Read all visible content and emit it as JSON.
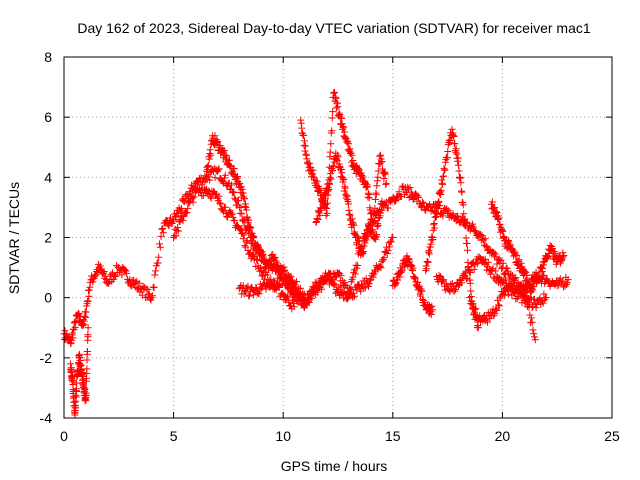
{
  "chart_data": {
    "type": "scatter",
    "title": "Day 162 of 2023, Sidereal Day-to-day VTEC variation (SDTVAR) for receiver mac1",
    "xlabel": "GPS time / hours",
    "ylabel": "SDTVAR / TECUs",
    "xlim": [
      0,
      25
    ],
    "ylim": [
      -4,
      8
    ],
    "xticks": [
      0,
      5,
      10,
      15,
      20,
      25
    ],
    "yticks": [
      -4,
      -2,
      0,
      2,
      4,
      6,
      8
    ],
    "xtick_labels": [
      "0",
      "5",
      "10",
      "15",
      "20",
      "25"
    ],
    "ytick_labels": [
      "-4",
      "-2",
      "0",
      "2",
      "4",
      "6",
      "8"
    ],
    "grid": true,
    "legend": "none",
    "marker": "+",
    "series_color": "#ff0000",
    "series": [
      {
        "name": "track-1",
        "x": [
          0.0,
          0.3,
          0.6,
          0.9,
          1.2,
          1.6,
          2.0,
          2.5,
          3.0,
          3.5,
          4.0,
          4.5,
          5.0,
          5.5,
          6.0,
          6.5,
          7.0,
          7.5,
          8.0,
          8.5,
          9.0,
          9.5,
          10.0,
          10.5,
          11.0,
          11.5,
          12.0,
          12.5,
          13.0,
          13.5,
          14.0,
          14.5,
          15.0,
          15.5,
          16.0,
          16.5,
          17.0,
          17.5,
          18.0,
          18.5,
          19.0,
          19.5,
          20.0,
          20.5,
          21.0,
          21.5,
          22.0,
          22.5,
          23.0
        ],
        "y": [
          -1.2,
          -1.5,
          -0.6,
          -0.9,
          0.5,
          1.0,
          0.5,
          1.0,
          0.6,
          0.3,
          0.0,
          2.3,
          2.6,
          3.2,
          3.8,
          4.0,
          4.2,
          3.8,
          3.0,
          2.0,
          1.4,
          0.9,
          0.9,
          0.3,
          -0.2,
          0.4,
          0.7,
          0.8,
          0.1,
          1.5,
          2.6,
          2.9,
          3.3,
          3.6,
          3.4,
          2.9,
          3.0,
          2.8,
          2.6,
          2.4,
          2.1,
          1.5,
          1.0,
          0.6,
          0.2,
          0.7,
          0.6,
          0.4,
          0.6
        ]
      },
      {
        "name": "track-2",
        "x": [
          6.5,
          6.8,
          7.1,
          7.4,
          7.7,
          8.0,
          8.3,
          8.6,
          8.9,
          9.2,
          9.5,
          9.8,
          10.1,
          10.4,
          10.7,
          11.0
        ],
        "y": [
          4.2,
          5.3,
          5.0,
          4.6,
          4.2,
          3.8,
          3.0,
          2.0,
          1.5,
          1.0,
          1.3,
          1.0,
          0.6,
          0.2,
          0.0,
          -0.2
        ]
      },
      {
        "name": "track-3",
        "x": [
          5.0,
          5.5,
          6.0,
          6.5,
          7.0,
          7.5,
          8.0,
          8.5,
          9.0,
          9.5,
          10.0,
          10.5
        ],
        "y": [
          2.0,
          2.8,
          3.5,
          3.6,
          3.3,
          2.8,
          2.3,
          1.5,
          0.9,
          0.4,
          0.1,
          -0.3
        ]
      },
      {
        "name": "track-4",
        "x": [
          8.0,
          8.5,
          9.0,
          9.5,
          10.0,
          10.5,
          11.0,
          11.5,
          12.0,
          12.5,
          13.0,
          13.5,
          14.0,
          14.5,
          15.0
        ],
        "y": [
          0.3,
          0.2,
          0.3,
          0.4,
          0.6,
          0.5,
          -0.1,
          0.3,
          0.6,
          0.2,
          0.1,
          0.3,
          0.6,
          1.2,
          2.0
        ]
      },
      {
        "name": "track-5",
        "x": [
          10.8,
          11.1,
          11.4,
          11.7,
          12.0,
          12.3,
          12.6,
          12.9,
          13.2,
          13.5,
          13.8,
          14.1,
          14.4,
          14.7
        ],
        "y": [
          5.9,
          4.5,
          4.0,
          3.4,
          2.8,
          6.8,
          6.0,
          5.2,
          4.4,
          4.1,
          3.7,
          2.5,
          4.7,
          3.8
        ]
      },
      {
        "name": "track-6",
        "x": [
          11.5,
          11.8,
          12.1,
          12.4,
          12.7,
          13.0,
          13.3,
          13.6,
          13.9,
          14.2,
          14.5
        ],
        "y": [
          2.5,
          3.2,
          3.8,
          4.8,
          4.0,
          2.9,
          2.0,
          1.5,
          2.4,
          2.0,
          3.2
        ]
      },
      {
        "name": "track-7",
        "x": [
          15.0,
          15.3,
          15.6,
          15.9,
          16.2,
          16.5,
          16.8
        ],
        "y": [
          0.4,
          0.8,
          1.3,
          0.9,
          0.3,
          -0.3,
          -0.4
        ]
      },
      {
        "name": "track-8",
        "x": [
          16.5,
          16.8,
          17.1,
          17.4,
          17.7,
          18.0,
          18.3,
          18.6,
          18.9
        ],
        "y": [
          0.9,
          2.0,
          3.2,
          4.5,
          5.6,
          4.4,
          2.4,
          -0.2,
          -1.0
        ]
      },
      {
        "name": "track-9",
        "x": [
          17.0,
          17.5,
          18.0,
          18.5,
          19.0,
          19.5,
          20.0,
          20.5,
          21.0,
          21.5,
          22.0
        ],
        "y": [
          0.7,
          0.3,
          0.4,
          0.9,
          1.3,
          0.9,
          0.5,
          0.2,
          -0.1,
          -0.2,
          0.0
        ]
      },
      {
        "name": "track-10",
        "x": [
          18.5,
          19.0,
          19.5,
          20.0,
          20.5,
          21.0,
          21.5
        ],
        "y": [
          0.0,
          -0.8,
          -0.6,
          0.1,
          0.4,
          0.3,
          -1.4
        ]
      },
      {
        "name": "track-11",
        "x": [
          19.5,
          19.8,
          20.1,
          20.4,
          20.7,
          21.0,
          21.3,
          21.6,
          21.9,
          22.2,
          22.5,
          22.8
        ],
        "y": [
          3.1,
          2.6,
          1.9,
          1.6,
          1.2,
          0.8,
          0.3,
          0.6,
          1.2,
          1.6,
          1.2,
          1.4
        ]
      },
      {
        "name": "track-12",
        "x": [
          0.3,
          0.4,
          0.5,
          0.6,
          0.7,
          0.8,
          0.9,
          1.0,
          1.1
        ],
        "y": [
          -2.2,
          -2.8,
          -3.9,
          -2.6,
          -2.0,
          -2.4,
          -3.0,
          -3.4,
          -1.0
        ]
      }
    ]
  }
}
